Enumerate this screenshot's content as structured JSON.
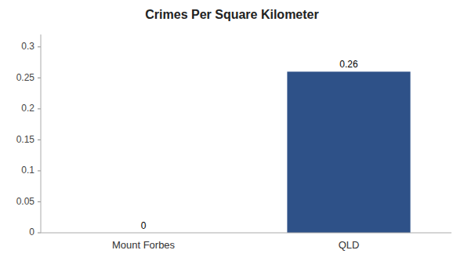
{
  "chart_data": {
    "type": "bar",
    "title": "Crimes Per Square Kilometer",
    "categories": [
      "Mount Forbes",
      "QLD"
    ],
    "values": [
      0,
      0.26
    ],
    "colors": [
      "#2e5188",
      "#2e5188"
    ],
    "ylim": [
      0,
      0.32
    ],
    "yticks": [
      0,
      0.05,
      0.1,
      0.15,
      0.2,
      0.25,
      0.3
    ],
    "grid": false,
    "data_labels": true
  }
}
